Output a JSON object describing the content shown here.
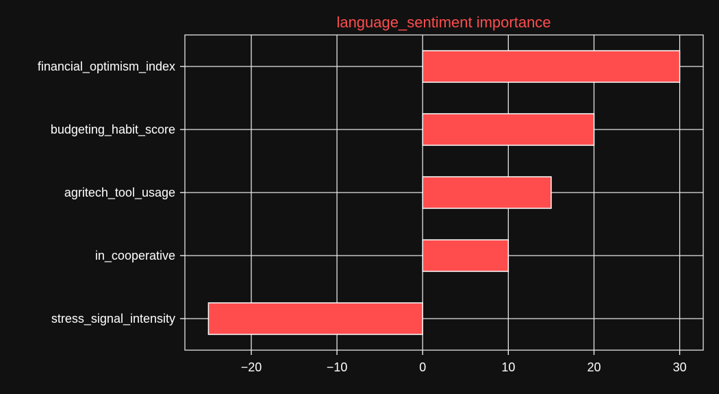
{
  "colors": {
    "background": "#111111",
    "foreground": "#FFFFFF",
    "title": "#FF4D4D",
    "bar_fill": "#FF4D4D",
    "bar_edge": "#FFFFFF",
    "grid": "#E6E6E6"
  },
  "chart_data": {
    "type": "bar",
    "orientation": "horizontal",
    "title": "language_sentiment importance",
    "xlabel": "",
    "ylabel": "",
    "categories": [
      "financial_optimism_index",
      "budgeting_habit_score",
      "agritech_tool_usage",
      "in_cooperative",
      "stress_signal_intensity"
    ],
    "values": [
      30,
      20,
      15,
      10,
      -25
    ],
    "xlim": [
      -27.75,
      32.75
    ],
    "xticks": [
      -20,
      -10,
      0,
      10,
      20,
      30
    ],
    "xtick_labels": [
      "−20",
      "−10",
      "0",
      "10",
      "20",
      "30"
    ],
    "grid": true,
    "legend": "none"
  }
}
